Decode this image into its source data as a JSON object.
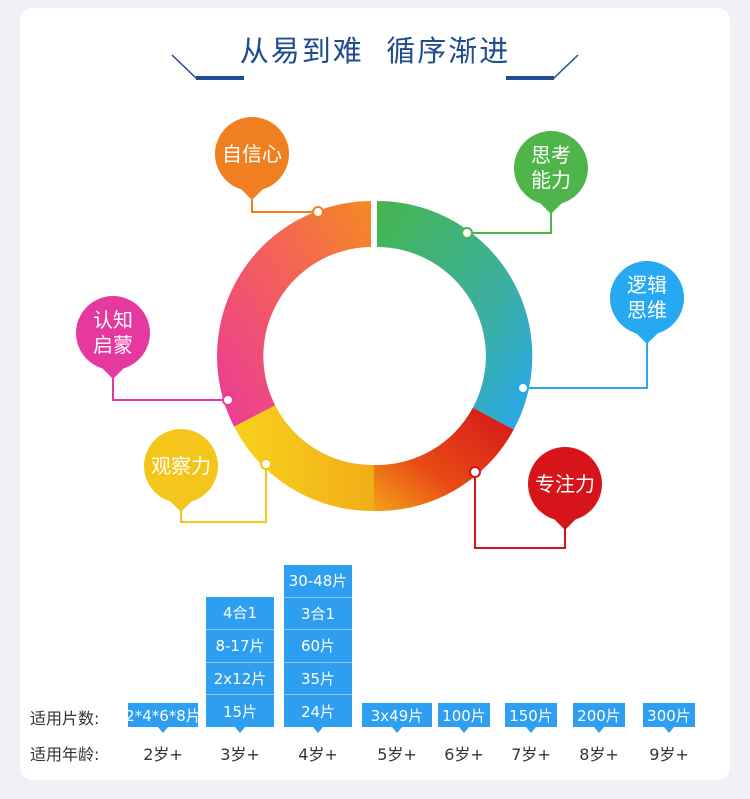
{
  "header": {
    "title": "从易到难  循序渐进",
    "accent_color": "#1f4d8f"
  },
  "skills": [
    {
      "id": "confidence",
      "label": "自信心",
      "color": "#f07f22"
    },
    {
      "id": "thinking",
      "label": "思考\n能力",
      "color": "#4fb54a"
    },
    {
      "id": "logic",
      "label": "逻辑\n思维",
      "color": "#26a8f2"
    },
    {
      "id": "focus",
      "label": "专注力",
      "color": "#d8141b"
    },
    {
      "id": "observe",
      "label": "观察力",
      "color": "#f4c51a"
    },
    {
      "id": "cognition",
      "label": "认知\n启蒙",
      "color": "#e5399f"
    }
  ],
  "table": {
    "pieces_label": "适用片数:",
    "age_label": "适用年龄:",
    "columns": [
      {
        "age": "2岁+",
        "pieces": [
          "2*4*6*8片"
        ]
      },
      {
        "age": "3岁+",
        "pieces": [
          "4合1",
          "8-17片",
          "2x12片",
          "15片"
        ]
      },
      {
        "age": "4岁+",
        "pieces": [
          "30-48片",
          "3合1",
          "60片",
          "35片",
          "24片"
        ]
      },
      {
        "age": "5岁+",
        "pieces": [
          "3x49片"
        ]
      },
      {
        "age": "6岁+",
        "pieces": [
          "100片"
        ]
      },
      {
        "age": "7岁+",
        "pieces": [
          "150片"
        ]
      },
      {
        "age": "8岁+",
        "pieces": [
          "200片"
        ]
      },
      {
        "age": "9岁+",
        "pieces": [
          "300片"
        ]
      }
    ]
  }
}
